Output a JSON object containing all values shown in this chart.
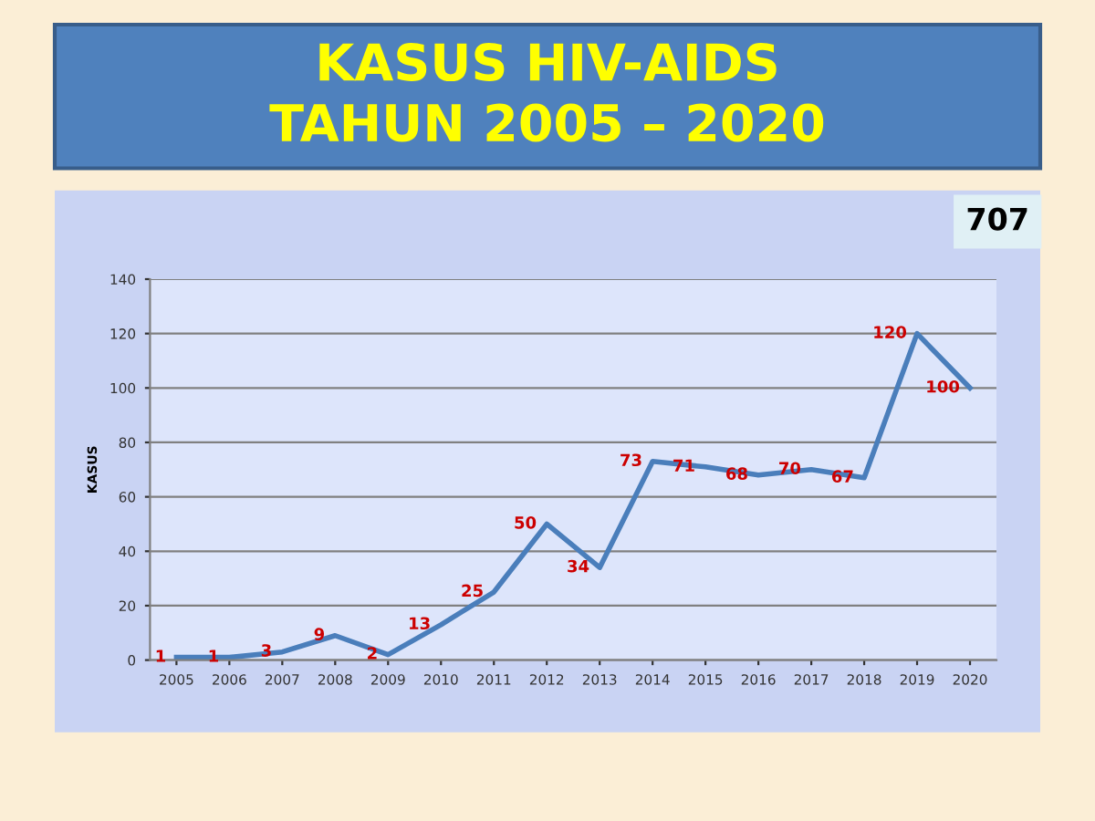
{
  "chart_data": {
    "type": "line",
    "title": "KASUS HIV-AIDS\nTAHUN 2005 – 2020",
    "ylabel": "KASUS",
    "categories": [
      "2005",
      "2006",
      "2007",
      "2008",
      "2009",
      "2010",
      "2011",
      "2012",
      "2013",
      "2014",
      "2015",
      "2016",
      "2017",
      "2018",
      "2019",
      "2020"
    ],
    "series": [
      {
        "color": "#4a7ebb",
        "values": [
          1,
          1,
          3,
          9,
          2,
          13,
          25,
          50,
          34,
          73,
          71,
          68,
          70,
          67,
          120,
          100
        ]
      }
    ],
    "ylim": [
      0,
      140
    ],
    "yticks": [
      0,
      20,
      40,
      60,
      80,
      100,
      120,
      140
    ],
    "grid": "y",
    "data_labels": true,
    "marker": "none",
    "line_style": "solid",
    "annotations": [
      "707"
    ]
  }
}
